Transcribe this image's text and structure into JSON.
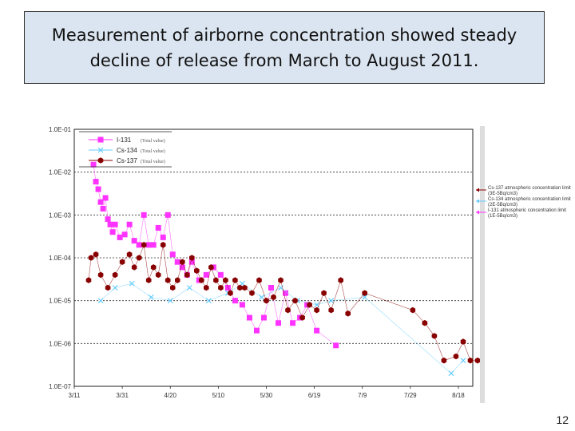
{
  "title": "Measurement of airborne concentration showed steady decline of release from March to August 2011.",
  "page_number": "12",
  "colors": {
    "I-131": "#ff33ff",
    "Cs-134": "#66ccff",
    "Cs-137": "#880000",
    "title_bg": "#dbe5f1"
  },
  "chart_data": {
    "type": "scatter",
    "y_scale": "log",
    "ylim": [
      1e-07,
      0.1
    ],
    "y_ticks": [
      "1.0E-01",
      "1.0E-02",
      "1.0E-03",
      "1.0E-04",
      "1.0E-05",
      "1.0E-06",
      "1.0E-07"
    ],
    "xlim": [
      "2011-03-11",
      "2011-08-24"
    ],
    "x_ticks": [
      {
        "label": "3/11",
        "date": "2011-03-11"
      },
      {
        "label": "3/31",
        "date": "2011-03-31"
      },
      {
        "label": "4/20",
        "date": "2011-04-20"
      },
      {
        "label": "5/10",
        "date": "2011-05-10"
      },
      {
        "label": "5/30",
        "date": "2011-05-30"
      },
      {
        "label": "6/19",
        "date": "2011-06-19"
      },
      {
        "label": "7/9",
        "date": "2011-07-09"
      },
      {
        "label": "7/29",
        "date": "2011-07-29"
      },
      {
        "label": "8/18",
        "date": "2011-08-18"
      }
    ],
    "grid": "horizontal dotted",
    "legend_placement": "top-left",
    "series": [
      {
        "name": "I-131",
        "legend_note": "(Total value)",
        "marker": "square",
        "points": [
          [
            "2011-03-19",
            0.015
          ],
          [
            "2011-03-20",
            0.006
          ],
          [
            "2011-03-21",
            0.004
          ],
          [
            "2011-03-22",
            0.002
          ],
          [
            "2011-03-23",
            0.0014
          ],
          [
            "2011-03-24",
            0.0025
          ],
          [
            "2011-03-25",
            0.0008
          ],
          [
            "2011-03-26",
            0.0006
          ],
          [
            "2011-03-27",
            0.0004
          ],
          [
            "2011-03-28",
            0.0006
          ],
          [
            "2011-03-30",
            0.0003
          ],
          [
            "2011-04-01",
            0.00035
          ],
          [
            "2011-04-03",
            0.0006
          ],
          [
            "2011-04-05",
            0.00025
          ],
          [
            "2011-04-07",
            0.0002
          ],
          [
            "2011-04-09",
            0.001
          ],
          [
            "2011-04-11",
            0.0002
          ],
          [
            "2011-04-13",
            0.0002
          ],
          [
            "2011-04-15",
            0.0005
          ],
          [
            "2011-04-17",
            0.0003
          ],
          [
            "2011-04-19",
            0.001
          ],
          [
            "2011-04-21",
            0.00012
          ],
          [
            "2011-04-23",
            8e-05
          ],
          [
            "2011-04-25",
            6e-05
          ],
          [
            "2011-04-27",
            4e-05
          ],
          [
            "2011-04-29",
            8e-05
          ],
          [
            "2011-05-02",
            3e-05
          ],
          [
            "2011-05-05",
            4e-05
          ],
          [
            "2011-05-08",
            6e-05
          ],
          [
            "2011-05-11",
            4e-05
          ],
          [
            "2011-05-14",
            2e-05
          ],
          [
            "2011-05-17",
            1e-05
          ],
          [
            "2011-05-20",
            8e-06
          ],
          [
            "2011-05-23",
            4e-06
          ],
          [
            "2011-05-26",
            2e-06
          ],
          [
            "2011-05-29",
            4e-06
          ],
          [
            "2011-06-01",
            2e-05
          ],
          [
            "2011-06-04",
            3e-06
          ],
          [
            "2011-06-07",
            1.5e-05
          ],
          [
            "2011-06-10",
            3e-06
          ],
          [
            "2011-06-13",
            4e-06
          ],
          [
            "2011-06-16",
            8e-06
          ],
          [
            "2011-06-20",
            2e-06
          ],
          [
            "2011-06-28",
            9e-07
          ]
        ]
      },
      {
        "name": "Cs-134",
        "legend_note": "(Total value)",
        "marker": "x",
        "points": [
          [
            "2011-03-22",
            1e-05
          ],
          [
            "2011-03-28",
            2e-05
          ],
          [
            "2011-04-04",
            2.5e-05
          ],
          [
            "2011-04-12",
            1.2e-05
          ],
          [
            "2011-04-20",
            1e-05
          ],
          [
            "2011-04-28",
            2e-05
          ],
          [
            "2011-05-06",
            1e-05
          ],
          [
            "2011-05-14",
            1.5e-05
          ],
          [
            "2011-05-20",
            2.5e-05
          ],
          [
            "2011-05-28",
            1.2e-05
          ],
          [
            "2011-06-05",
            2e-05
          ],
          [
            "2011-06-12",
            1e-05
          ],
          [
            "2011-06-20",
            8e-06
          ],
          [
            "2011-06-26",
            1e-05
          ],
          [
            "2011-07-10",
            1.2e-05
          ],
          [
            "2011-08-15",
            2e-07
          ],
          [
            "2011-08-20",
            4e-07
          ]
        ]
      },
      {
        "name": "Cs-137",
        "legend_note": "(Total value)",
        "marker": "hexagon",
        "points": [
          [
            "2011-03-17",
            3e-05
          ],
          [
            "2011-03-18",
            0.0001
          ],
          [
            "2011-03-20",
            0.00012
          ],
          [
            "2011-03-22",
            4e-05
          ],
          [
            "2011-03-25",
            2e-05
          ],
          [
            "2011-03-28",
            4e-05
          ],
          [
            "2011-03-31",
            8e-05
          ],
          [
            "2011-04-03",
            0.00012
          ],
          [
            "2011-04-05",
            6e-05
          ],
          [
            "2011-04-07",
            0.0001
          ],
          [
            "2011-04-09",
            0.0002
          ],
          [
            "2011-04-11",
            3e-05
          ],
          [
            "2011-04-13",
            6e-05
          ],
          [
            "2011-04-15",
            4e-05
          ],
          [
            "2011-04-17",
            0.0002
          ],
          [
            "2011-04-19",
            3e-05
          ],
          [
            "2011-04-21",
            2e-05
          ],
          [
            "2011-04-23",
            3e-05
          ],
          [
            "2011-04-25",
            8e-05
          ],
          [
            "2011-04-27",
            4e-05
          ],
          [
            "2011-04-29",
            0.0001
          ],
          [
            "2011-05-01",
            5e-05
          ],
          [
            "2011-05-03",
            3e-05
          ],
          [
            "2011-05-05",
            2e-05
          ],
          [
            "2011-05-07",
            6e-05
          ],
          [
            "2011-05-09",
            3e-05
          ],
          [
            "2011-05-11",
            2e-05
          ],
          [
            "2011-05-13",
            3e-05
          ],
          [
            "2011-05-15",
            1.5e-05
          ],
          [
            "2011-05-17",
            3e-05
          ],
          [
            "2011-05-19",
            2e-05
          ],
          [
            "2011-05-21",
            2e-05
          ],
          [
            "2011-05-24",
            1.5e-05
          ],
          [
            "2011-05-27",
            3e-05
          ],
          [
            "2011-05-30",
            1e-05
          ],
          [
            "2011-06-02",
            1.2e-05
          ],
          [
            "2011-06-05",
            3e-05
          ],
          [
            "2011-06-08",
            6e-06
          ],
          [
            "2011-06-11",
            1e-05
          ],
          [
            "2011-06-14",
            4e-06
          ],
          [
            "2011-06-17",
            8e-06
          ],
          [
            "2011-06-20",
            6e-06
          ],
          [
            "2011-06-23",
            1.5e-05
          ],
          [
            "2011-06-26",
            6e-06
          ],
          [
            "2011-06-30",
            3e-05
          ],
          [
            "2011-07-03",
            5e-06
          ],
          [
            "2011-07-10",
            1.5e-05
          ],
          [
            "2011-07-30",
            6e-06
          ],
          [
            "2011-08-04",
            3e-06
          ],
          [
            "2011-08-08",
            1.5e-06
          ],
          [
            "2011-08-12",
            4e-07
          ],
          [
            "2011-08-17",
            5e-07
          ],
          [
            "2011-08-20",
            1.1e-06
          ],
          [
            "2011-08-23",
            4e-07
          ],
          [
            "2011-08-26",
            4e-07
          ]
        ]
      }
    ],
    "annotations": [
      {
        "series": "Cs-137",
        "text": "Cs-137 atmospheric concentration limit",
        "value": "(3E-5Bq/cm3)",
        "y": 3e-05
      },
      {
        "series": "Cs-134",
        "text": "Cs-134 atmospheric concentration limit",
        "value": "(2E-5Bq/cm3)",
        "y": 2e-05
      },
      {
        "series": "I-131",
        "text": "I-131 atmospheric concentration limit",
        "value": "(1E-5Bq/cm3)",
        "y": 1e-05
      }
    ]
  }
}
